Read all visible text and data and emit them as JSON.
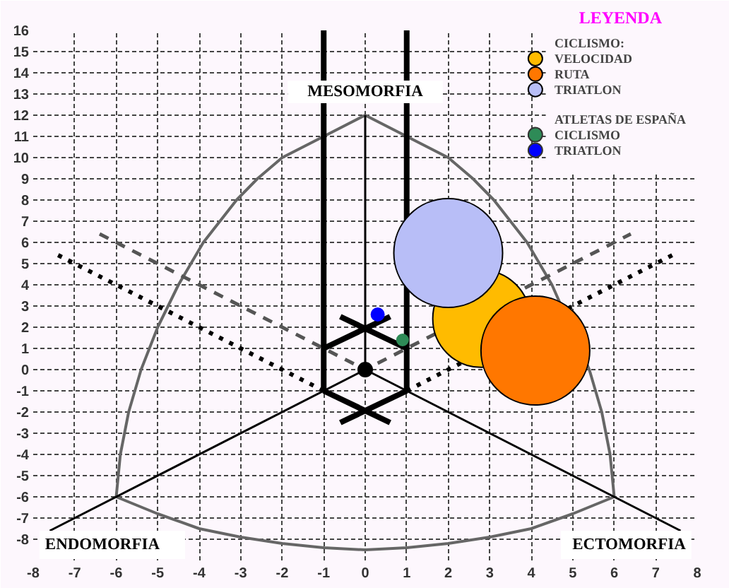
{
  "chart_data": {
    "type": "bubble",
    "xlim": [
      -8,
      8
    ],
    "ylim": [
      -9,
      16
    ],
    "xticks": [
      -8,
      -7,
      -6,
      -5,
      -4,
      -3,
      -2,
      -1,
      0,
      1,
      2,
      3,
      4,
      5,
      6,
      7,
      8
    ],
    "yticks": [
      {
        "value": -9,
        "label": null
      },
      -8,
      -7,
      -6,
      -5,
      -4,
      -3,
      -2,
      -1,
      0,
      1,
      2,
      3,
      4,
      5,
      6,
      7,
      8,
      9,
      10,
      11,
      12,
      13,
      14,
      15,
      16
    ],
    "grid": true,
    "legend": "top right",
    "legend_title": "LEYENDA",
    "annotations": [
      "MESOMORFIA",
      "ENDOMORFIA",
      "ECTOMORFIA",
      "CICLISMO:",
      "ATLETAS DE ESPAÑA"
    ],
    "series": [
      {
        "type": "line",
        "color": "#666666",
        "line_style": "solid",
        "x": [
          -6,
          -5.9,
          -5.7,
          -5.4,
          -5,
          -4.5,
          -3.9,
          -3.1,
          -2.6,
          -2,
          -1,
          0
        ],
        "values": [
          -6,
          -4,
          -2,
          0,
          2,
          4,
          6,
          8,
          9,
          10,
          11,
          12
        ]
      },
      {
        "type": "line",
        "color": "#666666",
        "line_style": "solid",
        "x": [
          0,
          1,
          2,
          2.6,
          3.1,
          3.9,
          4.5,
          5.4,
          5.7,
          5.9,
          6
        ],
        "values": [
          12,
          11,
          10,
          9,
          8,
          6,
          4,
          0,
          -2,
          -4,
          -6
        ]
      },
      {
        "type": "line",
        "color": "#666666",
        "line_style": "solid",
        "x": [
          -6,
          -5,
          -4,
          -3,
          -2,
          -1,
          0,
          1,
          2,
          3,
          4,
          5,
          6
        ],
        "values": [
          -6,
          -6.8,
          -7.5,
          -7.9,
          -8.2,
          -8.4,
          -8.5,
          -8.4,
          -8.2,
          -7.9,
          -7.5,
          -6.8,
          -6
        ]
      },
      {
        "type": "line",
        "color": "#000000",
        "line_style": "solid",
        "x": [
          -7.6,
          0,
          7.6
        ],
        "values": [
          -7.6,
          0,
          -7.6
        ]
      },
      {
        "type": "line",
        "color": "#000000",
        "line_style": "solid",
        "x": [
          0,
          0
        ],
        "values": [
          0,
          12
        ]
      },
      {
        "type": "line",
        "color": "#555555",
        "line_style": "dashed",
        "x": [
          -6.4,
          0,
          6.4
        ],
        "values": [
          6.4,
          0,
          6.4
        ]
      },
      {
        "type": "line",
        "color": "#000000",
        "line_style": "dotted",
        "x": [
          -7.4,
          -1
        ],
        "values": [
          5.4,
          -1
        ]
      },
      {
        "type": "line",
        "color": "#000000",
        "line_style": "dotted",
        "x": [
          1,
          7.4
        ],
        "values": [
          -1,
          5.4
        ]
      },
      {
        "type": "line",
        "color": "#000000",
        "line_style": "solid",
        "x": [
          -1,
          -1
        ],
        "values": [
          -1,
          16
        ]
      },
      {
        "type": "line",
        "color": "#000000",
        "line_style": "solid",
        "x": [
          1,
          1
        ],
        "values": [
          -1,
          16
        ]
      },
      {
        "type": "line",
        "color": "#000000",
        "line_style": "solid",
        "x": [
          -1,
          0.6
        ],
        "values": [
          1,
          2.5
        ]
      },
      {
        "type": "line",
        "color": "#000000",
        "line_style": "solid",
        "x": [
          1,
          -0.6
        ],
        "values": [
          1,
          2.5
        ]
      },
      {
        "type": "line",
        "color": "#000000",
        "line_style": "solid",
        "x": [
          -1,
          0.6
        ],
        "values": [
          -1,
          -2.5
        ]
      },
      {
        "type": "line",
        "color": "#000000",
        "line_style": "solid",
        "x": [
          1,
          -0.6
        ],
        "values": [
          -1,
          -2.5
        ]
      },
      {
        "name": "VELOCIDAD",
        "color": "#ffbb00",
        "x": [
          2.8
        ],
        "values": [
          2.4
        ],
        "sizes": [
          0.8
        ]
      },
      {
        "name": "RUTA",
        "color": "#ff7700",
        "x": [
          4.1
        ],
        "values": [
          0.9
        ],
        "sizes": [
          1
        ]
      },
      {
        "name": "TRIATLON",
        "color": "#b8bef7",
        "x": [
          2
        ],
        "values": [
          5.5
        ],
        "sizes": [
          1
        ]
      },
      {
        "type": "scatter",
        "color": "#000000",
        "marker": "circle",
        "x": [
          0
        ],
        "values": [
          0
        ]
      },
      {
        "type": "scatter",
        "name": "CICLISMO",
        "color": "#2e8b57",
        "marker": "circle",
        "x": [
          0.9
        ],
        "values": [
          1.4
        ]
      },
      {
        "type": "scatter",
        "name": "TRIATLON",
        "color": "#0000ff",
        "marker": "circle",
        "x": [
          0.3
        ],
        "values": [
          2.6
        ]
      }
    ]
  }
}
